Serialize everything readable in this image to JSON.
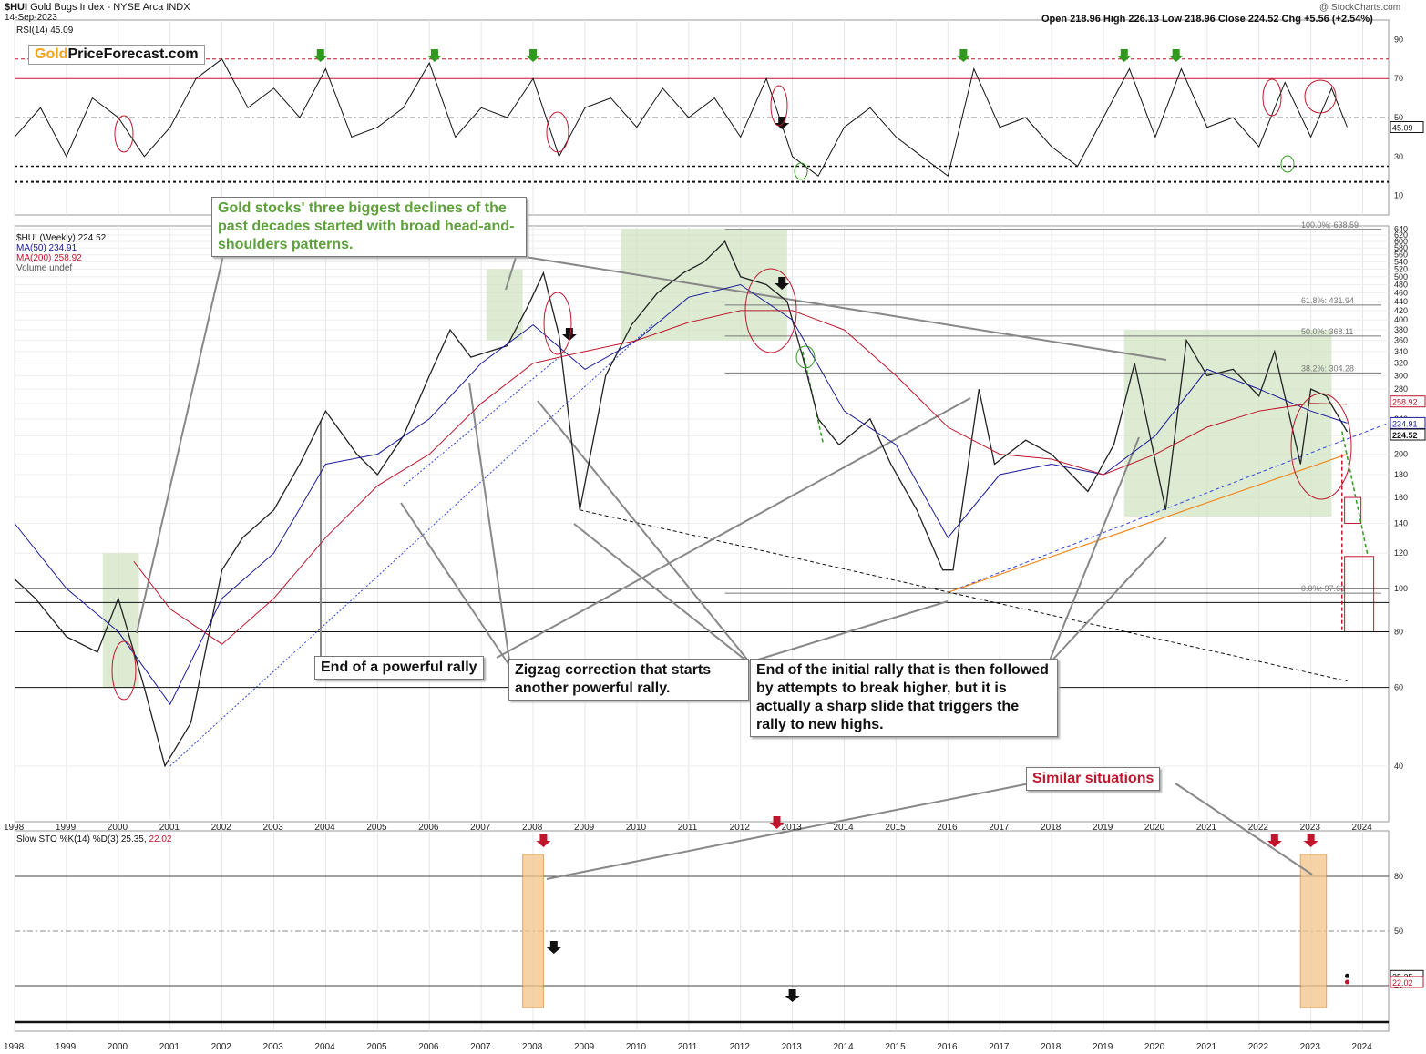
{
  "header": {
    "symbol": "$HUI",
    "name": "Gold Bugs Index - NYSE Arca INDX",
    "date": "14-Sep-2023",
    "credit": "@ StockCharts.com",
    "ohlc": "Open 218.96   High 226.13   Low 218.96   Close 224.52   Chg +5.56 (+2.54%)",
    "chg_color": "#1a7a1a"
  },
  "logo": {
    "part1": "Gold",
    "part2": "PriceForecast.com"
  },
  "rsi_panel": {
    "label": "RSI(14) 45.09",
    "value_tag": "45.09",
    "ticks": [
      "90",
      "70",
      "50",
      "30",
      "10"
    ]
  },
  "price_panel": {
    "legend": [
      "$HUI (Weekly) 224.52",
      "MA(50) 234.91",
      "MA(200) 258.92",
      "Volume undef"
    ],
    "legend_colors": [
      "#111111",
      "#1a1a9a",
      "#c0162d",
      "#555555"
    ],
    "ticks": [
      "640",
      "620",
      "600",
      "580",
      "560",
      "540",
      "520",
      "500",
      "480",
      "460",
      "440",
      "420",
      "400",
      "380",
      "360",
      "340",
      "320",
      "300",
      "280",
      "260",
      "240",
      "220",
      "200",
      "180",
      "160",
      "140",
      "120",
      "100",
      "80",
      "60",
      "40"
    ],
    "value_tags": [
      {
        "text": "258.92",
        "color": "#c0162d"
      },
      {
        "text": "234.91",
        "color": "#1a1a9a"
      },
      {
        "text": "224.52",
        "color": "#111111"
      }
    ],
    "fib_labels": [
      "100.0%: 638.59",
      "61.8%: 431.94",
      "50.0%: 368.11",
      "38.2%: 304.28",
      "0.0%: 97.63"
    ]
  },
  "stoch_panel": {
    "label": "Slow STO %K(14) %D(3) 25.35, ",
    "label_d": "22.02",
    "ticks": [
      "80",
      "50",
      "20"
    ],
    "value_tags": [
      "25.35",
      "22.02"
    ]
  },
  "x_axis": {
    "years": [
      "1998",
      "1999",
      "2000",
      "2001",
      "2002",
      "2003",
      "2004",
      "2005",
      "2006",
      "2007",
      "2008",
      "2009",
      "2010",
      "2011",
      "2012",
      "2013",
      "2014",
      "2015",
      "2016",
      "2017",
      "2018",
      "2019",
      "2020",
      "2021",
      "2022",
      "2023",
      "2024"
    ]
  },
  "annotations": {
    "hs": "Gold stocks' three biggest declines of the past decades started with broad head-and-shoulders patterns.",
    "rally": "End of a powerful rally",
    "zigzag": "Zigzag correction that starts another powerful rally.",
    "initial": "End of the initial rally that is then followed by attempts to break higher, but it is actually a sharp slide that triggers the rally to new highs.",
    "similar": "Similar situations"
  },
  "colors": {
    "price": "#222222",
    "ma50": "#1a1a9a",
    "ma200": "#c0162d",
    "hs_box": "#cfe3c0",
    "highlight": "#f4c58a",
    "rsi_line": "#111111",
    "annotation_green": "#5ea03c",
    "annotation_red": "#c0162d",
    "arrow_green": "#2f9a1e"
  },
  "chart_data": [
    {
      "type": "line",
      "title": "$HUI Gold Bugs Index (Weekly)",
      "scale": "log",
      "ylim": [
        30,
        650
      ],
      "series": [
        {
          "name": "$HUI (Weekly)",
          "x": [
            1998.0,
            1998.4,
            1999.0,
            1999.6,
            2000.0,
            2000.5,
            2000.9,
            2001.4,
            2002.0,
            2002.4,
            2003.0,
            2003.5,
            2004.0,
            2004.6,
            2005.0,
            2005.5,
            2006.0,
            2006.4,
            2006.8,
            2007.5,
            2007.9,
            2008.2,
            2008.5,
            2008.9,
            2009.4,
            2009.9,
            2010.4,
            2010.9,
            2011.3,
            2011.7,
            2012.0,
            2012.5,
            2012.9,
            2013.2,
            2013.5,
            2013.9,
            2014.5,
            2014.9,
            2015.4,
            2015.9,
            2016.1,
            2016.6,
            2016.9,
            2017.5,
            2018.0,
            2018.7,
            2019.2,
            2019.6,
            2020.2,
            2020.6,
            2021.0,
            2021.5,
            2022.0,
            2022.3,
            2022.8,
            2023.0,
            2023.3,
            2023.7
          ],
          "values": [
            105,
            95,
            78,
            72,
            95,
            60,
            40,
            50,
            110,
            130,
            150,
            190,
            250,
            200,
            180,
            220,
            300,
            380,
            330,
            350,
            430,
            510,
            370,
            150,
            300,
            390,
            460,
            510,
            540,
            600,
            500,
            480,
            440,
            330,
            240,
            210,
            240,
            190,
            150,
            110,
            110,
            280,
            190,
            215,
            200,
            165,
            210,
            320,
            150,
            360,
            300,
            310,
            270,
            340,
            190,
            280,
            270,
            224.52
          ]
        },
        {
          "name": "MA(50)",
          "x": [
            1998.0,
            1999.0,
            2000.0,
            2001.0,
            2002.0,
            2003.0,
            2004.0,
            2005.0,
            2006.0,
            2007.0,
            2008.0,
            2009.0,
            2010.0,
            2011.0,
            2012.0,
            2013.0,
            2014.0,
            2015.0,
            2016.0,
            2017.0,
            2018.0,
            2019.0,
            2020.0,
            2021.0,
            2022.0,
            2023.0,
            2023.7
          ],
          "values": [
            140,
            100,
            80,
            55,
            95,
            120,
            190,
            200,
            240,
            320,
            390,
            310,
            360,
            450,
            480,
            400,
            250,
            210,
            130,
            180,
            190,
            180,
            220,
            310,
            280,
            250,
            234.91
          ]
        },
        {
          "name": "MA(200)",
          "x": [
            2000.3,
            2001.0,
            2002.0,
            2003.0,
            2004.0,
            2005.0,
            2006.0,
            2007.0,
            2008.0,
            2009.0,
            2010.0,
            2011.0,
            2012.0,
            2013.0,
            2014.0,
            2015.0,
            2016.0,
            2017.0,
            2018.0,
            2019.0,
            2020.0,
            2021.0,
            2022.0,
            2023.0,
            2023.7
          ],
          "values": [
            115,
            90,
            75,
            95,
            130,
            170,
            200,
            260,
            320,
            340,
            360,
            395,
            420,
            420,
            380,
            300,
            230,
            200,
            195,
            180,
            200,
            230,
            250,
            260,
            258.92
          ]
        }
      ]
    },
    {
      "type": "line",
      "title": "RSI(14)",
      "ylim": [
        0,
        100
      ],
      "series": [
        {
          "name": "RSI(14)",
          "x": [
            1998.0,
            1998.5,
            1999.0,
            1999.5,
            2000.0,
            2000.5,
            2001.0,
            2001.5,
            2002.0,
            2002.5,
            2003.0,
            2003.5,
            2004.0,
            2004.5,
            2005.0,
            2005.5,
            2006.0,
            2006.5,
            2007.0,
            2007.5,
            2008.0,
            2008.5,
            2009.0,
            2009.5,
            2010.0,
            2010.5,
            2011.0,
            2011.5,
            2012.0,
            2012.5,
            2013.0,
            2013.5,
            2014.0,
            2014.5,
            2015.0,
            2015.5,
            2016.0,
            2016.5,
            2017.0,
            2017.5,
            2018.0,
            2018.5,
            2019.0,
            2019.5,
            2020.0,
            2020.5,
            2021.0,
            2021.5,
            2022.0,
            2022.5,
            2023.0,
            2023.4,
            2023.7
          ],
          "values": [
            40,
            55,
            30,
            60,
            50,
            30,
            45,
            70,
            80,
            55,
            65,
            50,
            75,
            40,
            45,
            55,
            78,
            40,
            55,
            50,
            70,
            30,
            55,
            60,
            45,
            65,
            50,
            60,
            40,
            70,
            30,
            20,
            45,
            55,
            40,
            30,
            20,
            75,
            45,
            50,
            35,
            25,
            50,
            75,
            40,
            75,
            45,
            50,
            35,
            68,
            40,
            65,
            45.09
          ]
        }
      ]
    },
    {
      "type": "line",
      "title": "Slow STO %K(14) %D(3)",
      "ylim": [
        0,
        100
      ],
      "series": [
        {
          "name": "%K",
          "x": [
            2023.7
          ],
          "values": [
            25.35
          ]
        },
        {
          "name": "%D",
          "x": [
            2023.7
          ],
          "values": [
            22.02
          ]
        }
      ]
    }
  ]
}
